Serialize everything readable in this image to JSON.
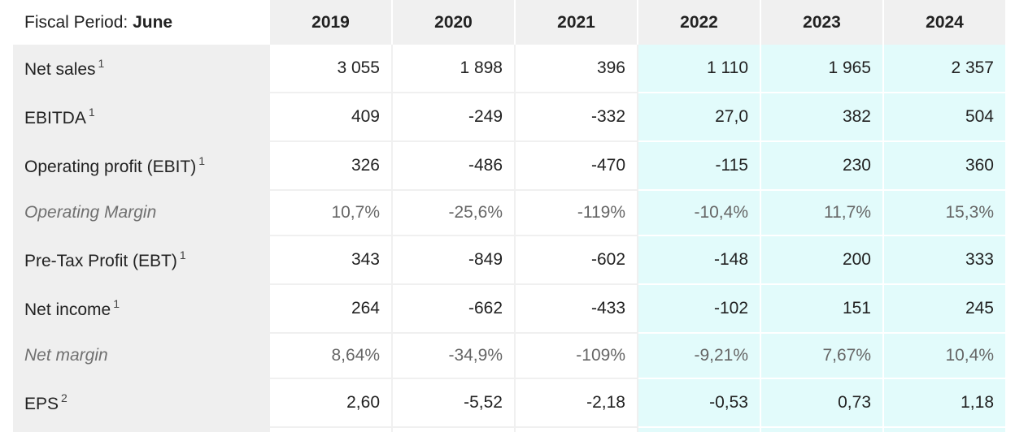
{
  "header": {
    "period_label": "Fiscal Period:",
    "period_value": "June",
    "years": [
      "2019",
      "2020",
      "2021",
      "2022",
      "2023",
      "2024"
    ]
  },
  "rows": [
    {
      "label": "Net sales",
      "note": "1",
      "values": [
        "3 055",
        "1 898",
        "396",
        "1 110",
        "1 965",
        "2 357"
      ]
    },
    {
      "label": "EBITDA",
      "note": "1",
      "values": [
        "409",
        "-249",
        "-332",
        "27,0",
        "382",
        "504"
      ]
    },
    {
      "label": "Operating profit (EBIT)",
      "note": "1",
      "values": [
        "326",
        "-486",
        "-470",
        "-115",
        "230",
        "360"
      ]
    },
    {
      "label": "Operating Margin",
      "note": "",
      "values": [
        "10,7%",
        "-25,6%",
        "-119%",
        "-10,4%",
        "11,7%",
        "15,3%"
      ]
    },
    {
      "label": "Pre-Tax Profit (EBT)",
      "note": "1",
      "values": [
        "343",
        "-849",
        "-602",
        "-148",
        "200",
        "333"
      ]
    },
    {
      "label": "Net income",
      "note": "1",
      "values": [
        "264",
        "-662",
        "-433",
        "-102",
        "151",
        "245"
      ]
    },
    {
      "label": "Net margin",
      "note": "",
      "values": [
        "8,64%",
        "-34,9%",
        "-109%",
        "-9,21%",
        "7,67%",
        "10,4%"
      ]
    },
    {
      "label": "EPS",
      "note": "2",
      "values": [
        "2,60",
        "-5,52",
        "-2,18",
        "-0,53",
        "0,73",
        "1,18"
      ]
    }
  ],
  "colors": {
    "header_bg": "#f0f0f0",
    "label_bg": "#efefef",
    "estimate_bg": "#e2fbfb",
    "text": "#222222",
    "muted_text": "#666666"
  }
}
